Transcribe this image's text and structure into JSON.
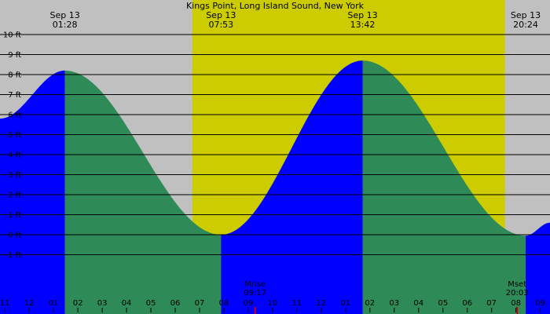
{
  "chart_data": {
    "type": "area",
    "title": "Kings Point, Long Island Sound, New York",
    "y_unit": "ft",
    "ylim": [
      -2,
      10
    ],
    "yticks": [
      {
        "value": 10,
        "label": "10 ft"
      },
      {
        "value": 9,
        "label": "9 ft"
      },
      {
        "value": 8,
        "label": "8 ft"
      },
      {
        "value": 7,
        "label": "7 ft"
      },
      {
        "value": 6,
        "label": "6 ft"
      },
      {
        "value": 5,
        "label": "5 ft"
      },
      {
        "value": 4,
        "label": "4 ft"
      },
      {
        "value": 3,
        "label": "3 ft"
      },
      {
        "value": 2,
        "label": "2 ft"
      },
      {
        "value": 1,
        "label": "1 ft"
      },
      {
        "value": 0,
        "label": "0 ft"
      },
      {
        "value": -1,
        "label": "-1 ft"
      }
    ],
    "x_range_hours": [
      -1.2,
      21.4
    ],
    "xticks": [
      "11",
      "12",
      "01",
      "02",
      "03",
      "04",
      "05",
      "06",
      "07",
      "08",
      "09",
      "10",
      "11",
      "12",
      "01",
      "02",
      "03",
      "04",
      "05",
      "06",
      "07",
      "08",
      "09"
    ],
    "daylight": {
      "sunrise_hour": 6.7,
      "sunset_hour": 19.55
    },
    "series": [
      {
        "points": [
          {
            "t": -1.2,
            "h": 5.8
          },
          {
            "t": 1.467,
            "h": 8.2
          },
          {
            "t": 7.883,
            "h": 0.0
          },
          {
            "t": 13.7,
            "h": 8.7
          },
          {
            "t": 20.4,
            "h": -0.05
          },
          {
            "t": 21.4,
            "h": 0.6
          }
        ]
      }
    ],
    "events": [
      {
        "date": "Sep 13",
        "time": "01:28",
        "t": 1.467,
        "h": 8.2
      },
      {
        "date": "Sep 13",
        "time": "07:53",
        "t": 7.883,
        "h": 0.0
      },
      {
        "date": "Sep 13",
        "time": "13:42",
        "t": 13.7,
        "h": 8.7
      },
      {
        "date": "Sep 13",
        "time": "20:24",
        "t": 20.4,
        "h": -0.05
      }
    ],
    "moon": [
      {
        "label": "Mrise",
        "time": "09:17",
        "t": 9.283
      },
      {
        "label": "Mset",
        "time": "20:03",
        "t": 20.05
      }
    ],
    "grid": true,
    "colors": {
      "night": "#c0c0c0",
      "day": "#cccc00",
      "rising": "#0000ff",
      "falling": "#2e8b57",
      "gridline": "#000000",
      "moon_marker": "#cc0000"
    }
  }
}
